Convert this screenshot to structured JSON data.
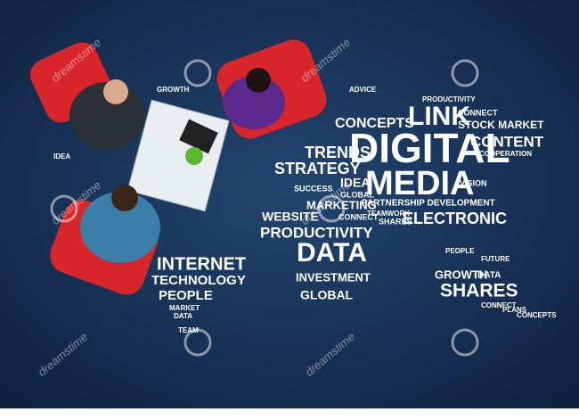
{
  "words": [
    "LINK",
    "CONCEPTS",
    "CONNECT",
    "STOCK MARKET",
    "DIGITAL",
    "CONTENT",
    "TRENDS",
    "STRATEGY",
    "MEDIA",
    "VISION",
    "MARKETING",
    "PARTNERSHIP DEVELOPMENT",
    "WEBSITE",
    "ELECTRONIC",
    "PRODUCTIVITY",
    "DATA",
    "INVESTMENT",
    "GLOBAL",
    "GROWTH",
    "DATA",
    "SHARES",
    "INTERNET",
    "TECHNOLOGY",
    "PEOPLE",
    "MARKET",
    "DATA",
    "SUCCESS",
    "IDEA",
    "GLOBAL",
    "CONNECT",
    "COOPERATION",
    "PRODUCTIVITY",
    "SHARES",
    "TEAMWORK",
    "ADVICE",
    "GROWTH",
    "IDEA",
    "CONNECT",
    "PEOPLE",
    "PLANS",
    "FUTURE",
    "CONCEPTS",
    "TEAM"
  ],
  "watermarks": [
    "dreamstime",
    "dreamstime",
    "dreamstime",
    "dreamstime",
    "dreamstime",
    "dreamstime"
  ]
}
